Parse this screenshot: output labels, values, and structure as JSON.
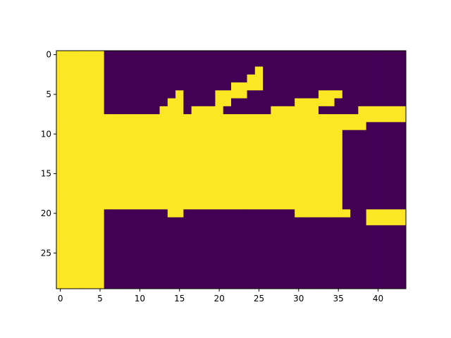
{
  "chart_data": {
    "type": "heatmap",
    "title": "",
    "xlabel": "",
    "ylabel": "",
    "n_rows": 30,
    "n_cols": 44,
    "xlim": [
      -0.5,
      43.5
    ],
    "ylim": [
      29.5,
      -0.5
    ],
    "x_ticks": [
      0,
      5,
      10,
      15,
      20,
      25,
      30,
      35,
      40
    ],
    "y_ticks": [
      0,
      5,
      10,
      15,
      20,
      25
    ],
    "grid": false,
    "legend": "none",
    "colormap": "viridis",
    "colors": {
      "low": "#440154",
      "high": "#fde725",
      "axes": "#000000"
    },
    "value_range": [
      0,
      1
    ],
    "mask_rows": [
      "11111100000000000000000000000000000000000000",
      "11111100000000000000000000000000000000000000",
      "11111100000000000000000001000000000000000000",
      "11111100000000000000000001000000000000000000",
      "11111100000000000000000111000000000000000000",
      "11111100000000000000011110000000000000000000",
      "11111100000000000000011110000000000000000000",
      "11111100000000000000111100000000000000000000",
      "11111111111111111111111111111111111111111111",
      "11111111111111111111111111111111111111111111",
      "11111111111111111111111111111111111110000000",
      "11111111111111111111111111111111111100000000",
      "11111111111111111111111111111111111100000000",
      "11111111111111111111111111111111111100000000",
      "11111111111111111111111111111111111100000000",
      "11111111111111111111111111111111111100000000",
      "11111111111111111111111111111111111100000000",
      "11111111111111111111111111111111111100000000",
      "11111111111111111111111111111111111100000000",
      "11111111111111111111111111111111111100000000",
      "11111100000000111000000000000011111111000000",
      "11111100000000110000000000000000000000000000",
      "11111100000000000000000000000000000000000000",
      "11111100000000000000000000000000000000000000",
      "11111100000000000000000000000000000000000000",
      "11111100000000000000000000000000000000000000",
      "11111100000000000000000000000000000000000000",
      "11111100000000000000000000000000000000000000",
      "11111100000000000000000000000000000000000000",
      "11111100000000000000000000000000000000000000"
    ],
    "overrides": [
      {
        "row": 2,
        "cols": [
          25
        ]
      },
      {
        "row": 3,
        "cols": [
          24,
          25
        ]
      },
      {
        "row": 4,
        "cols": [
          22,
          23,
          24,
          25
        ]
      },
      {
        "row": 5,
        "cols": [
          15,
          20,
          21,
          22,
          23,
          33,
          34,
          35
        ]
      },
      {
        "row": 6,
        "cols": [
          14,
          15,
          20,
          21,
          30,
          31,
          32,
          33,
          34
        ]
      },
      {
        "row": 7,
        "cols": [
          13,
          14,
          15,
          17,
          18,
          19,
          20,
          27,
          28,
          29,
          30,
          31,
          32,
          38,
          39,
          40,
          41,
          42,
          43
        ]
      },
      {
        "row": 8,
        "cols": "6-43"
      },
      {
        "row": 9,
        "cols": "6-38"
      },
      {
        "row": 10,
        "cols": "6-35"
      },
      {
        "row": 19,
        "cols": "6-35"
      },
      {
        "row": 20,
        "cols": [
          14,
          15,
          30,
          31,
          32,
          33,
          34,
          35,
          36,
          39,
          40,
          41,
          42,
          43
        ]
      },
      {
        "row": 21,
        "cols": [
          39,
          40,
          41,
          42,
          43
        ]
      }
    ]
  }
}
